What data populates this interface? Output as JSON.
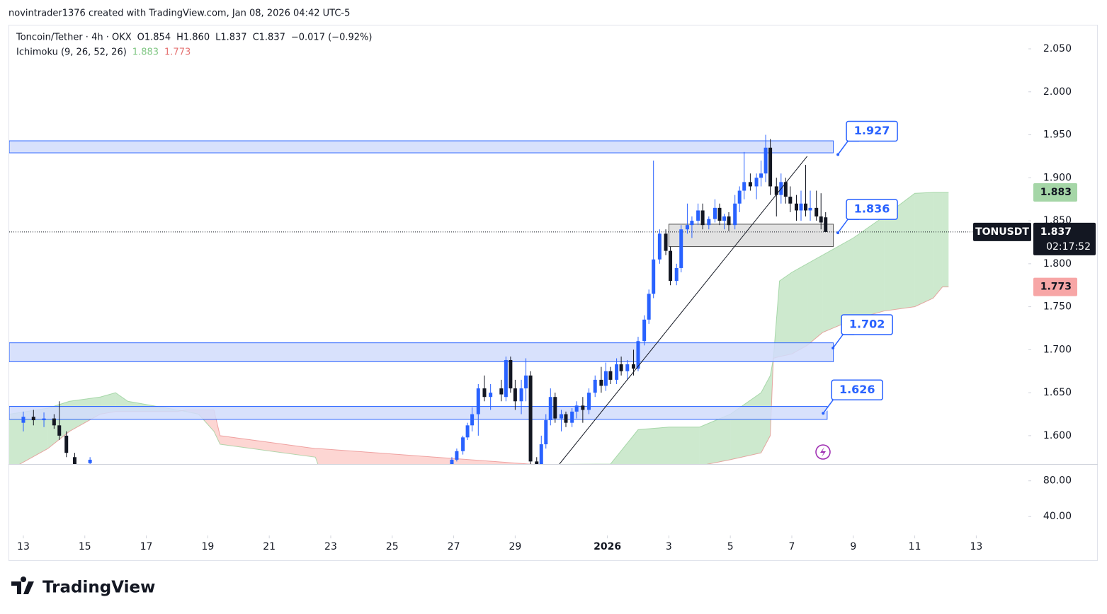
{
  "chart_data": {
    "type": "candlestick",
    "attribution": "novintrader1376 created with TradingView.com, Jan 08, 2026 04:42 UTC-5",
    "legend": {
      "symbol": "Toncoin/Tether · 4h · OKX",
      "open": "O1.854",
      "high": "H1.860",
      "low": "L1.837",
      "close": "C1.837",
      "change": "−0.017 (−0.92%)"
    },
    "indicator": {
      "name": "Ichimoku (9, 26, 52, 26)",
      "values": [
        1.883,
        1.773
      ],
      "colors": [
        "#81c784",
        "#e57373"
      ]
    },
    "symbol_badge": "TONUSDT",
    "countdown": "02:17:52",
    "last_price": 1.837,
    "logo": "TradingView",
    "up_color": "#2962ff",
    "down_color": "#131722",
    "xlim": [
      -0.46,
      32.65
    ],
    "ylim": [
      1.567,
      2.078
    ],
    "xticks": [
      {
        "value": 0,
        "label": "13"
      },
      {
        "value": 2,
        "label": "15"
      },
      {
        "value": 4,
        "label": "17"
      },
      {
        "value": 6,
        "label": "19"
      },
      {
        "value": 8,
        "label": "21"
      },
      {
        "value": 10,
        "label": "23"
      },
      {
        "value": 12,
        "label": "25"
      },
      {
        "value": 14,
        "label": "27"
      },
      {
        "value": 16,
        "label": "29"
      },
      {
        "value": 19,
        "label": "2026"
      },
      {
        "value": 21,
        "label": "3"
      },
      {
        "value": 23,
        "label": "5"
      },
      {
        "value": 25,
        "label": "7"
      },
      {
        "value": 27,
        "label": "9"
      },
      {
        "value": 29,
        "label": "11"
      },
      {
        "value": 31,
        "label": "13"
      }
    ],
    "yticks": [
      {
        "value": 1.6,
        "label": "1.600"
      },
      {
        "value": 1.65,
        "label": "1.650"
      },
      {
        "value": 1.7,
        "label": "1.700"
      },
      {
        "value": 1.75,
        "label": "1.750"
      },
      {
        "value": 1.8,
        "label": "1.800"
      },
      {
        "value": 1.85,
        "label": "1.850"
      },
      {
        "value": 1.9,
        "label": "1.900"
      },
      {
        "value": 1.95,
        "label": "1.950"
      },
      {
        "value": 2.0,
        "label": "2.000"
      },
      {
        "value": 2.05,
        "label": "2.050"
      }
    ],
    "lower_pane": {
      "ylim": [
        18.8,
        98
      ],
      "yticks": [
        {
          "value": 80,
          "label": "80.00"
        },
        {
          "value": 40,
          "label": "40.00"
        }
      ]
    },
    "candles": {
      "x": [
        0,
        0.33,
        0.67,
        1.0,
        1.17,
        1.4,
        1.67,
        2.17,
        13.94,
        14.1,
        14.3,
        14.45,
        14.6,
        14.8,
        15.0,
        15.2,
        15.55,
        15.7,
        15.85,
        16.0,
        16.2,
        16.35,
        16.5,
        16.7,
        16.85,
        17.0,
        17.15,
        17.3,
        17.5,
        17.65,
        17.85,
        18.0,
        18.2,
        18.4,
        18.6,
        18.8,
        18.95,
        19.1,
        19.3,
        19.45,
        19.65,
        19.85,
        20.0,
        20.2,
        20.35,
        20.5,
        20.7,
        20.9,
        21.05,
        21.25,
        21.4,
        21.6,
        21.75,
        21.95,
        22.1,
        22.3,
        22.5,
        22.65,
        22.8,
        22.95,
        23.15,
        23.3,
        23.45,
        23.65,
        23.85,
        24.0,
        24.15,
        24.3,
        24.5,
        24.65,
        24.8,
        24.95,
        25.15,
        25.3,
        25.45,
        25.6,
        25.8,
        25.95,
        26.1
      ],
      "open": [
        1.615,
        1.622,
        1.618,
        1.62,
        1.612,
        1.6,
        1.575,
        1.568,
        1.565,
        1.572,
        1.582,
        1.598,
        1.612,
        1.625,
        1.655,
        1.645,
        1.655,
        1.645,
        1.688,
        1.655,
        1.64,
        1.655,
        1.67,
        1.57,
        1.565,
        1.59,
        1.618,
        1.645,
        1.62,
        1.625,
        1.615,
        1.628,
        1.635,
        1.63,
        1.65,
        1.665,
        1.658,
        1.675,
        1.665,
        1.683,
        1.675,
        1.683,
        1.678,
        1.71,
        1.735,
        1.765,
        1.805,
        1.835,
        1.815,
        1.78,
        1.795,
        1.84,
        1.845,
        1.85,
        1.862,
        1.845,
        1.852,
        1.865,
        1.85,
        1.855,
        1.845,
        1.87,
        1.885,
        1.895,
        1.89,
        1.9,
        1.905,
        1.935,
        1.89,
        1.88,
        1.895,
        1.878,
        1.87,
        1.862,
        1.87,
        1.862,
        1.865,
        1.855,
        1.854
      ],
      "high": [
        1.628,
        1.63,
        1.627,
        1.625,
        1.64,
        1.605,
        1.58,
        1.575,
        1.575,
        1.585,
        1.6,
        1.615,
        1.633,
        1.66,
        1.67,
        1.66,
        1.665,
        1.692,
        1.692,
        1.665,
        1.665,
        1.69,
        1.675,
        1.575,
        1.6,
        1.625,
        1.655,
        1.65,
        1.63,
        1.628,
        1.632,
        1.64,
        1.645,
        1.655,
        1.67,
        1.68,
        1.685,
        1.68,
        1.69,
        1.692,
        1.688,
        1.7,
        1.715,
        1.74,
        1.77,
        1.92,
        1.84,
        1.84,
        1.82,
        1.8,
        1.845,
        1.87,
        1.855,
        1.87,
        1.87,
        1.855,
        1.875,
        1.87,
        1.858,
        1.86,
        1.88,
        1.89,
        1.93,
        1.905,
        1.905,
        1.92,
        1.95,
        1.945,
        1.9,
        1.905,
        1.9,
        1.89,
        1.88,
        1.885,
        1.915,
        1.885,
        1.885,
        1.882,
        1.86
      ],
      "low": [
        1.605,
        1.612,
        1.61,
        1.608,
        1.595,
        1.575,
        1.56,
        1.56,
        1.56,
        1.57,
        1.578,
        1.595,
        1.605,
        1.6,
        1.64,
        1.63,
        1.64,
        1.64,
        1.65,
        1.63,
        1.625,
        1.64,
        1.567,
        1.56,
        1.56,
        1.585,
        1.612,
        1.615,
        1.605,
        1.61,
        1.61,
        1.62,
        1.615,
        1.625,
        1.645,
        1.65,
        1.652,
        1.66,
        1.66,
        1.67,
        1.665,
        1.67,
        1.675,
        1.705,
        1.73,
        1.76,
        1.8,
        1.81,
        1.775,
        1.775,
        1.79,
        1.835,
        1.83,
        1.845,
        1.84,
        1.84,
        1.848,
        1.845,
        1.84,
        1.838,
        1.84,
        1.86,
        1.875,
        1.885,
        1.875,
        1.89,
        1.895,
        1.88,
        1.855,
        1.87,
        1.87,
        1.86,
        1.85,
        1.85,
        1.855,
        1.85,
        1.85,
        1.84,
        1.837
      ],
      "close": [
        1.622,
        1.618,
        1.62,
        1.612,
        1.6,
        1.58,
        1.565,
        1.572,
        1.572,
        1.582,
        1.598,
        1.612,
        1.625,
        1.655,
        1.645,
        1.65,
        1.648,
        1.688,
        1.655,
        1.64,
        1.655,
        1.67,
        1.57,
        1.565,
        1.59,
        1.618,
        1.645,
        1.62,
        1.625,
        1.615,
        1.628,
        1.635,
        1.63,
        1.65,
        1.665,
        1.658,
        1.675,
        1.665,
        1.683,
        1.675,
        1.683,
        1.678,
        1.71,
        1.735,
        1.765,
        1.805,
        1.835,
        1.815,
        1.78,
        1.795,
        1.84,
        1.845,
        1.85,
        1.862,
        1.845,
        1.852,
        1.865,
        1.85,
        1.855,
        1.845,
        1.87,
        1.885,
        1.895,
        1.89,
        1.9,
        1.905,
        1.935,
        1.89,
        1.88,
        1.895,
        1.878,
        1.87,
        1.862,
        1.87,
        1.862,
        1.865,
        1.855,
        1.848,
        1.837
      ]
    },
    "ichimoku": {
      "x": [
        -0.46,
        0.8,
        1.5,
        2.5,
        3.0,
        3.4,
        5.0,
        5.3,
        5.7,
        6.2,
        6.4,
        9.5,
        9.6,
        19.1,
        20,
        21,
        22,
        23,
        24,
        24.3,
        24.4,
        24.6,
        25,
        25.5,
        26,
        27,
        28,
        29,
        29.6,
        29.9,
        30.1
      ],
      "span_a": [
        1.625,
        1.632,
        1.64,
        1.645,
        1.65,
        1.64,
        1.63,
        1.628,
        1.625,
        1.605,
        1.59,
        1.575,
        1.565,
        1.567,
        1.607,
        1.61,
        1.61,
        1.625,
        1.65,
        1.67,
        1.69,
        1.78,
        1.79,
        1.8,
        1.81,
        1.83,
        1.855,
        1.882,
        1.883,
        1.883,
        1.883
      ],
      "span_b": [
        1.56,
        1.585,
        1.605,
        1.625,
        1.628,
        1.628,
        1.628,
        1.63,
        1.63,
        1.63,
        1.6,
        1.585,
        1.585,
        1.56,
        1.562,
        1.563,
        1.565,
        1.572,
        1.58,
        1.6,
        1.69,
        1.692,
        1.695,
        1.705,
        1.72,
        1.735,
        1.745,
        1.75,
        1.76,
        1.773,
        1.773
      ]
    },
    "zones": [
      {
        "x": [
          -0.46,
          26.35
        ],
        "y": [
          1.929,
          1.943
        ],
        "color": "#d1dcfb",
        "border": "#2962ff"
      },
      {
        "x": [
          -0.46,
          26.35
        ],
        "y": [
          1.686,
          1.708
        ],
        "color": "#d1dcfb",
        "border": "#2962ff"
      },
      {
        "x": [
          -0.46,
          26.15
        ],
        "y": [
          1.619,
          1.634
        ],
        "color": "#d1dcfb",
        "border": "#2962ff"
      },
      {
        "x": [
          21.0,
          26.35
        ],
        "y": [
          1.82,
          1.846
        ],
        "color": "#dcdcdc",
        "border": "#555555"
      }
    ],
    "trendline": {
      "x": [
        17.44,
        25.5
      ],
      "y": [
        1.567,
        1.925
      ]
    },
    "annotations": [
      {
        "x": 26.5,
        "price": 1.927
      },
      {
        "x": 26.5,
        "price": 1.836
      },
      {
        "x": 26.34,
        "price": 1.702
      },
      {
        "x": 26.02,
        "price": 1.626
      }
    ]
  }
}
